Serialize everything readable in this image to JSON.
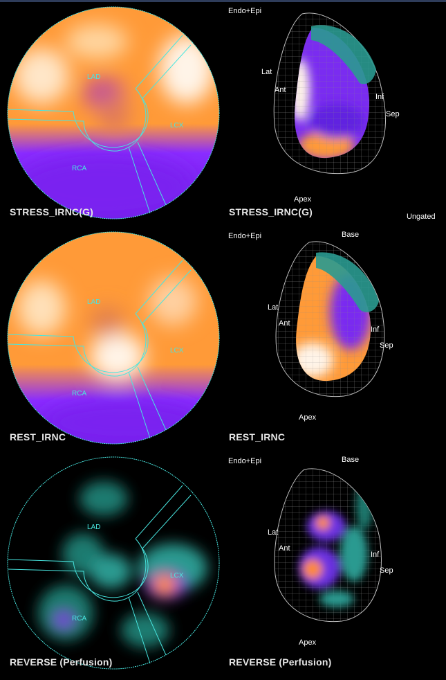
{
  "status": {
    "gating": "Ungated"
  },
  "panels": [
    {
      "id": "stress",
      "left_caption": "STRESS_IRNC(G)",
      "right_caption": "STRESS_IRNC(G)",
      "view_label": "Endo+Epi",
      "base_label": "",
      "apex_label": "Apex",
      "wall_labels": {
        "lat": "Lat",
        "ant": "Ant",
        "inf": "Inf",
        "sep": "Sep"
      },
      "territories": {
        "lad": "LAD",
        "lcx": "LCX",
        "rca": "RCA"
      }
    },
    {
      "id": "rest",
      "left_caption": "REST_IRNC",
      "right_caption": "REST_IRNC",
      "view_label": "Endo+Epi",
      "base_label": "Base",
      "apex_label": "Apex",
      "wall_labels": {
        "lat": "Lat",
        "ant": "Ant",
        "inf": "Inf",
        "sep": "Sep"
      },
      "territories": {
        "lad": "LAD",
        "lcx": "LCX",
        "rca": "RCA"
      }
    },
    {
      "id": "reverse",
      "left_caption": "REVERSE (Perfusion)",
      "right_caption": "REVERSE (Perfusion)",
      "view_label": "Endo+Epi",
      "base_label": "Base",
      "apex_label": "Apex",
      "wall_labels": {
        "lat": "Lat",
        "ant": "Ant",
        "inf": "Inf",
        "sep": "Sep"
      },
      "territories": {
        "lad": "LAD",
        "lcx": "LCX",
        "rca": "RCA"
      }
    }
  ],
  "colors": {
    "outline": "#48e6e0",
    "hot": "#fff4e8",
    "orange": "#ff9a38",
    "purple": "#8a2cff",
    "teal": "#2a9a90"
  }
}
